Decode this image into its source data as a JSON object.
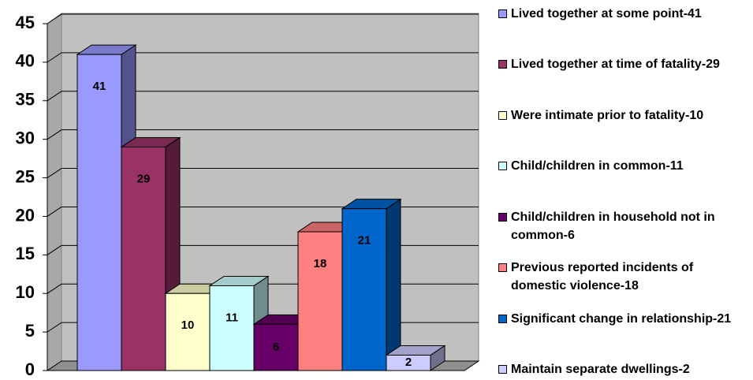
{
  "chart_data": {
    "type": "bar",
    "categories": [
      null
    ],
    "series": [
      {
        "name": "Lived together at some point-41",
        "color": "#9999ff",
        "values": [
          41
        ]
      },
      {
        "name": "Lived together at time of fatality-29",
        "color": "#993366",
        "values": [
          29
        ]
      },
      {
        "name": "Were intimate prior to fatality-10",
        "color": "#ffffcc",
        "values": [
          10
        ]
      },
      {
        "name": "Child/children in common-11",
        "color": "#ccffff",
        "values": [
          11
        ]
      },
      {
        "name": "Child/children in household not in common-6",
        "color": "#660066",
        "values": [
          6
        ]
      },
      {
        "name": "Previous reported incidents of domestic violence-18",
        "color": "#ff8080",
        "values": [
          18
        ]
      },
      {
        "name": "Significant change in relationship-21",
        "color": "#0066cc",
        "values": [
          21
        ]
      },
      {
        "name": "Maintain separate dwellings-2",
        "color": "#ccccff",
        "values": [
          2
        ]
      }
    ],
    "ylim": [
      0,
      45
    ],
    "yticks": [
      0,
      5,
      10,
      15,
      20,
      25,
      30,
      35,
      40,
      45
    ],
    "grid": true,
    "legend": "right"
  }
}
